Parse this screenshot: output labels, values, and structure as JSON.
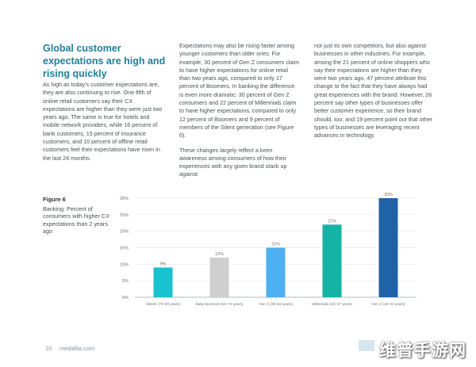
{
  "heading": "Global customer expectations are high and rising quickly",
  "col1": [
    "As high as today's customer expectations are, they are also continuing to rise. One fifth of online retail customers say their CX expectations are higher than they were just two years ago. The same is true for hotels and mobile network providers, while 16 percent of bank customers, 15 percent of insurance customers, and 10 percent of offline retail customers feel their expectations have risen in the last 24 months."
  ],
  "col2": [
    "Expectations may also be rising faster among younger customers than older ones. For example, 30 percent of Gen Z consumers claim to have higher expectations for online retail than two years ago, compared to only 17 percent of Boomers. In banking the difference is even more dramatic: 30 percent of Gen Z consumers and 22 percent of Millennials claim to have higher expectations, compared to only 12 percent of Boomers and 9 percent of members of the Silent generation (see Figure 6).",
    "These changes largely reflect a keen awareness among consumers of how their experiences with any given brand stack up against"
  ],
  "col3": [
    "not just its own competitors, but also against businesses in other industries. For example, among the 21 percent of online shoppers who say their expectations are higher than they were two years ago, 47 percent attribute this change to the fact that they have always had great experiences with the brand. However, 26 percent say other types of businesses offer better customer experience, so their brand should, too; and 19 percent point out that other types of businesses are leveraging recent advances in technology."
  ],
  "figure": {
    "title": "Figure 6",
    "caption": "Banking: Percent of consumers with higher CX expectations than 2 years ago"
  },
  "chart_data": {
    "type": "bar",
    "categories": [
      "Silents (73–90 years)",
      "Baby Boomers (54–72 years)",
      "Gen X (38–53 years)",
      "Millennials (23–37 years)",
      "Gen Z (18–22 years)"
    ],
    "values": [
      9,
      12,
      15,
      22,
      30
    ],
    "value_labels": [
      "9%",
      "12%",
      "15%",
      "22%",
      "30%"
    ],
    "yticks": [
      "0%",
      "5%",
      "10%",
      "15%",
      "20%",
      "25%",
      "30%"
    ],
    "ylim": [
      0,
      30
    ],
    "colors": [
      "#17c3cf",
      "#cfcfcf",
      "#4fb0f0",
      "#14b3a5",
      "#1f62a8"
    ],
    "grid": true
  },
  "footer": {
    "page_number": "10",
    "url": "medallia.com"
  },
  "watermark": "维普手游网"
}
